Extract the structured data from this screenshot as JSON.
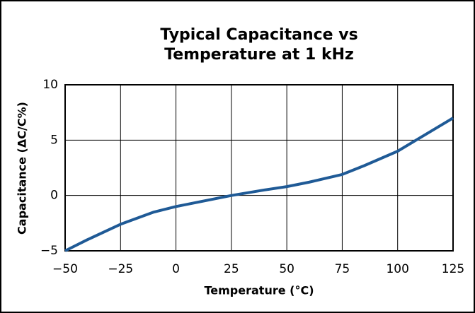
{
  "chart_data": {
    "type": "line",
    "title": [
      "Typical Capacitance vs",
      "Temperature at 1 kHz"
    ],
    "x_label": "Temperature (°C)",
    "y_label": "Capacitance (ΔC/C%)",
    "xlim": [
      -50,
      125
    ],
    "ylim": [
      -5,
      10
    ],
    "xticks": [
      {
        "value": -50,
        "label": "−50"
      },
      {
        "value": -25,
        "label": "−25"
      },
      0,
      25,
      50,
      75,
      100,
      125
    ],
    "yticks": [
      {
        "value": -5,
        "label": "−5"
      },
      0,
      5,
      10
    ],
    "grid": true,
    "x": [
      -50,
      -40,
      -25,
      -10,
      0,
      10,
      25,
      40,
      50,
      60,
      75,
      85,
      100,
      110,
      125
    ],
    "series": [
      {
        "color": "#1f5a96",
        "values": [
          -5,
          -4.0,
          -2.6,
          -1.5,
          -1,
          -0.6,
          0,
          0.5,
          0.8,
          1.2,
          1.9,
          2.7,
          4,
          5.2,
          7
        ]
      }
    ]
  }
}
